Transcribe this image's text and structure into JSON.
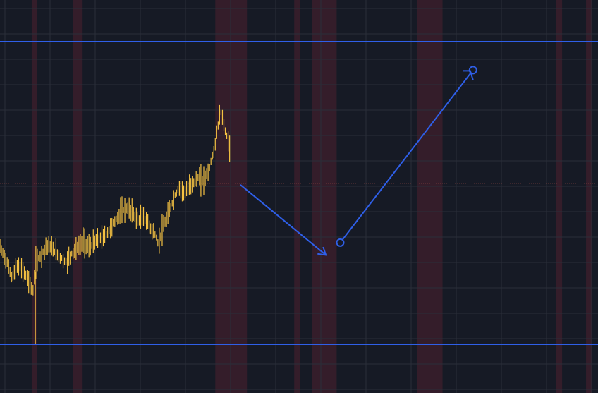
{
  "colors": {
    "background": "#161a25",
    "grid": "#2a2e39",
    "session_band": "#3a1f2b",
    "price_bars": "#f5c242",
    "drawing_lines": "#2f5fe8",
    "current_price_line": "#b2534a"
  },
  "chart_data": {
    "type": "bar",
    "grid": true,
    "session_bands": [
      {
        "start": 0.053,
        "end": 0.062
      },
      {
        "start": 0.122,
        "end": 0.137
      },
      {
        "start": 0.36,
        "end": 0.413
      },
      {
        "start": 0.492,
        "end": 0.502
      },
      {
        "start": 0.522,
        "end": 0.563
      },
      {
        "start": 0.698,
        "end": 0.74
      },
      {
        "start": 0.93,
        "end": 0.94
      },
      {
        "start": 0.98,
        "end": 0.99
      }
    ],
    "y_range": [
      0,
      1
    ],
    "price_path": [
      [
        0.0,
        0.32
      ],
      [
        0.01,
        0.28
      ],
      [
        0.02,
        0.22
      ],
      [
        0.03,
        0.26
      ],
      [
        0.04,
        0.24
      ],
      [
        0.05,
        0.2
      ],
      [
        0.055,
        0.17
      ],
      [
        0.06,
        0.27
      ],
      [
        0.07,
        0.3
      ],
      [
        0.08,
        0.33
      ],
      [
        0.09,
        0.31
      ],
      [
        0.1,
        0.29
      ],
      [
        0.11,
        0.27
      ],
      [
        0.12,
        0.3
      ],
      [
        0.13,
        0.32
      ],
      [
        0.14,
        0.34
      ],
      [
        0.15,
        0.32
      ],
      [
        0.16,
        0.34
      ],
      [
        0.17,
        0.35
      ],
      [
        0.18,
        0.37
      ],
      [
        0.19,
        0.4
      ],
      [
        0.2,
        0.43
      ],
      [
        0.21,
        0.45
      ],
      [
        0.22,
        0.44
      ],
      [
        0.23,
        0.41
      ],
      [
        0.24,
        0.42
      ],
      [
        0.25,
        0.39
      ],
      [
        0.26,
        0.36
      ],
      [
        0.265,
        0.33
      ],
      [
        0.27,
        0.37
      ],
      [
        0.28,
        0.42
      ],
      [
        0.29,
        0.48
      ],
      [
        0.3,
        0.52
      ],
      [
        0.31,
        0.5
      ],
      [
        0.32,
        0.53
      ],
      [
        0.33,
        0.55
      ],
      [
        0.34,
        0.54
      ],
      [
        0.35,
        0.58
      ],
      [
        0.355,
        0.62
      ],
      [
        0.36,
        0.66
      ],
      [
        0.365,
        0.73
      ],
      [
        0.37,
        0.77
      ],
      [
        0.375,
        0.72
      ],
      [
        0.38,
        0.68
      ],
      [
        0.385,
        0.65
      ]
    ],
    "horizontal_lines": [
      {
        "name": "upper-level",
        "value": 1.0
      },
      {
        "name": "lower-level",
        "value": 0.0
      }
    ],
    "current_price": 0.532,
    "projection": {
      "down_leg": {
        "from": [
          0.402,
          0.527
        ],
        "to": [
          0.545,
          0.295
        ]
      },
      "up_leg": {
        "from": [
          0.569,
          0.336
        ],
        "to": [
          0.791,
          0.906
        ]
      }
    }
  }
}
